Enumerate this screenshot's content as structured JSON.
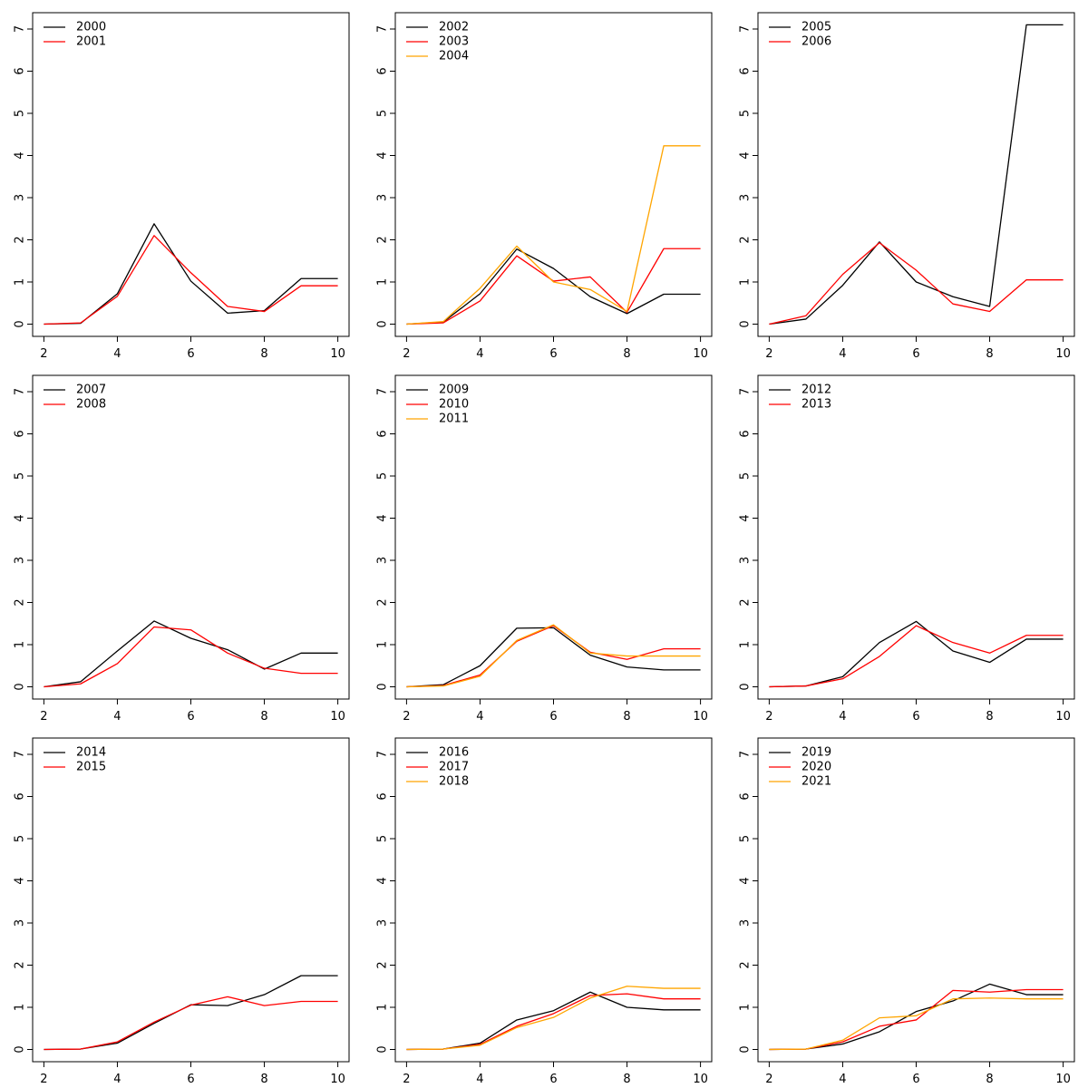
{
  "chart_data": [
    {
      "type": "line",
      "x": [
        2,
        3,
        4,
        5,
        6,
        7,
        8,
        9,
        10
      ],
      "xlim": [
        2,
        10
      ],
      "ylim": [
        0,
        7
      ],
      "xticks": [
        2,
        4,
        6,
        8,
        10
      ],
      "yticks": [
        0,
        1,
        2,
        3,
        4,
        5,
        6,
        7
      ],
      "legend_position": "top-left",
      "grid": false,
      "series": [
        {
          "name": "2000",
          "color": "#000000",
          "values": [
            0,
            0.02,
            0.72,
            2.38,
            1.02,
            0.26,
            0.32,
            1.08,
            1.08
          ]
        },
        {
          "name": "2001",
          "color": "#ff0000",
          "values": [
            0,
            0.03,
            0.66,
            2.1,
            1.22,
            0.42,
            0.3,
            0.91,
            0.91
          ]
        }
      ]
    },
    {
      "type": "line",
      "x": [
        2,
        3,
        4,
        5,
        6,
        7,
        8,
        9,
        10
      ],
      "xlim": [
        2,
        10
      ],
      "ylim": [
        0,
        7
      ],
      "xticks": [
        2,
        4,
        6,
        8,
        10
      ],
      "yticks": [
        0,
        1,
        2,
        3,
        4,
        5,
        6,
        7
      ],
      "legend_position": "top-left",
      "grid": false,
      "series": [
        {
          "name": "2002",
          "color": "#000000",
          "values": [
            0,
            0.05,
            0.72,
            1.78,
            1.32,
            0.65,
            0.25,
            0.71,
            0.71
          ]
        },
        {
          "name": "2003",
          "color": "#ff0000",
          "values": [
            0,
            0.03,
            0.55,
            1.62,
            1.02,
            1.12,
            0.28,
            1.79,
            1.79
          ]
        },
        {
          "name": "2004",
          "color": "#ffa500",
          "values": [
            0,
            0.06,
            0.85,
            1.85,
            1.0,
            0.82,
            0.3,
            4.23,
            4.23
          ]
        }
      ]
    },
    {
      "type": "line",
      "x": [
        2,
        3,
        4,
        5,
        6,
        7,
        8,
        9,
        10
      ],
      "xlim": [
        2,
        10
      ],
      "ylim": [
        0,
        7
      ],
      "xticks": [
        2,
        4,
        6,
        8,
        10
      ],
      "yticks": [
        0,
        1,
        2,
        3,
        4,
        5,
        6,
        7
      ],
      "legend_position": "top-left",
      "grid": false,
      "series": [
        {
          "name": "2005",
          "color": "#000000",
          "values": [
            0,
            0.12,
            0.92,
            1.95,
            1.0,
            0.65,
            0.42,
            7.1,
            7.1
          ]
        },
        {
          "name": "2006",
          "color": "#ff0000",
          "values": [
            0,
            0.2,
            1.18,
            1.93,
            1.28,
            0.48,
            0.3,
            1.05,
            1.05
          ]
        }
      ]
    },
    {
      "type": "line",
      "x": [
        2,
        3,
        4,
        5,
        6,
        7,
        8,
        9,
        10
      ],
      "xlim": [
        2,
        10
      ],
      "ylim": [
        0,
        7
      ],
      "xticks": [
        2,
        4,
        6,
        8,
        10
      ],
      "yticks": [
        0,
        1,
        2,
        3,
        4,
        5,
        6,
        7
      ],
      "legend_position": "top-left",
      "grid": false,
      "series": [
        {
          "name": "2007",
          "color": "#000000",
          "values": [
            0,
            0.12,
            0.85,
            1.56,
            1.15,
            0.88,
            0.42,
            0.8,
            0.8
          ]
        },
        {
          "name": "2008",
          "color": "#ff0000",
          "values": [
            0,
            0.07,
            0.55,
            1.42,
            1.35,
            0.8,
            0.44,
            0.32,
            0.32
          ]
        }
      ]
    },
    {
      "type": "line",
      "x": [
        2,
        3,
        4,
        5,
        6,
        7,
        8,
        9,
        10
      ],
      "xlim": [
        2,
        10
      ],
      "ylim": [
        0,
        7
      ],
      "xticks": [
        2,
        4,
        6,
        8,
        10
      ],
      "yticks": [
        0,
        1,
        2,
        3,
        4,
        5,
        6,
        7
      ],
      "legend_position": "top-left",
      "grid": false,
      "series": [
        {
          "name": "2009",
          "color": "#000000",
          "values": [
            0,
            0.05,
            0.5,
            1.39,
            1.4,
            0.75,
            0.47,
            0.4,
            0.4
          ]
        },
        {
          "name": "2010",
          "color": "#ff0000",
          "values": [
            0,
            0.03,
            0.28,
            1.08,
            1.45,
            0.82,
            0.65,
            0.9,
            0.9
          ]
        },
        {
          "name": "2011",
          "color": "#ffa500",
          "values": [
            0,
            0.02,
            0.25,
            1.1,
            1.47,
            0.8,
            0.73,
            0.73,
            0.73
          ]
        }
      ]
    },
    {
      "type": "line",
      "x": [
        2,
        3,
        4,
        5,
        6,
        7,
        8,
        9,
        10
      ],
      "xlim": [
        2,
        10
      ],
      "ylim": [
        0,
        7
      ],
      "xticks": [
        2,
        4,
        6,
        8,
        10
      ],
      "yticks": [
        0,
        1,
        2,
        3,
        4,
        5,
        6,
        7
      ],
      "legend_position": "top-left",
      "grid": false,
      "series": [
        {
          "name": "2012",
          "color": "#000000",
          "values": [
            0,
            0.02,
            0.24,
            1.05,
            1.55,
            0.85,
            0.58,
            1.13,
            1.13
          ]
        },
        {
          "name": "2013",
          "color": "#ff0000",
          "values": [
            0,
            0.02,
            0.19,
            0.72,
            1.45,
            1.05,
            0.8,
            1.22,
            1.22
          ]
        }
      ]
    },
    {
      "type": "line",
      "x": [
        2,
        3,
        4,
        5,
        6,
        7,
        8,
        9,
        10
      ],
      "xlim": [
        2,
        10
      ],
      "ylim": [
        0,
        7
      ],
      "xticks": [
        2,
        4,
        6,
        8,
        10
      ],
      "yticks": [
        0,
        1,
        2,
        3,
        4,
        5,
        6,
        7
      ],
      "legend_position": "top-left",
      "grid": false,
      "series": [
        {
          "name": "2014",
          "color": "#000000",
          "values": [
            0,
            0.01,
            0.15,
            0.62,
            1.06,
            1.04,
            1.3,
            1.75,
            1.75
          ]
        },
        {
          "name": "2015",
          "color": "#ff0000",
          "values": [
            0,
            0.01,
            0.18,
            0.65,
            1.05,
            1.25,
            1.04,
            1.14,
            1.14
          ]
        }
      ]
    },
    {
      "type": "line",
      "x": [
        2,
        3,
        4,
        5,
        6,
        7,
        8,
        9,
        10
      ],
      "xlim": [
        2,
        10
      ],
      "ylim": [
        0,
        7
      ],
      "xticks": [
        2,
        4,
        6,
        8,
        10
      ],
      "yticks": [
        0,
        1,
        2,
        3,
        4,
        5,
        6,
        7
      ],
      "legend_position": "top-left",
      "grid": false,
      "series": [
        {
          "name": "2016",
          "color": "#000000",
          "values": [
            0,
            0.01,
            0.15,
            0.7,
            0.92,
            1.36,
            1.0,
            0.94,
            0.94
          ]
        },
        {
          "name": "2017",
          "color": "#ff0000",
          "values": [
            0,
            0.01,
            0.12,
            0.55,
            0.85,
            1.28,
            1.32,
            1.2,
            1.2
          ]
        },
        {
          "name": "2018",
          "color": "#ffa500",
          "values": [
            0,
            0.01,
            0.1,
            0.52,
            0.76,
            1.22,
            1.5,
            1.45,
            1.45
          ]
        }
      ]
    },
    {
      "type": "line",
      "x": [
        2,
        3,
        4,
        5,
        6,
        7,
        8,
        9,
        10
      ],
      "xlim": [
        2,
        10
      ],
      "ylim": [
        0,
        7
      ],
      "xticks": [
        2,
        4,
        6,
        8,
        10
      ],
      "yticks": [
        0,
        1,
        2,
        3,
        4,
        5,
        6,
        7
      ],
      "legend_position": "top-left",
      "grid": false,
      "series": [
        {
          "name": "2019",
          "color": "#000000",
          "values": [
            0,
            0.01,
            0.13,
            0.42,
            0.9,
            1.15,
            1.55,
            1.3,
            1.3
          ]
        },
        {
          "name": "2020",
          "color": "#ff0000",
          "values": [
            0,
            0.01,
            0.18,
            0.55,
            0.7,
            1.4,
            1.36,
            1.42,
            1.42
          ]
        },
        {
          "name": "2021",
          "color": "#ffa500",
          "values": [
            0,
            0.01,
            0.22,
            0.75,
            0.8,
            1.2,
            1.22,
            1.2,
            1.2
          ]
        }
      ]
    }
  ]
}
